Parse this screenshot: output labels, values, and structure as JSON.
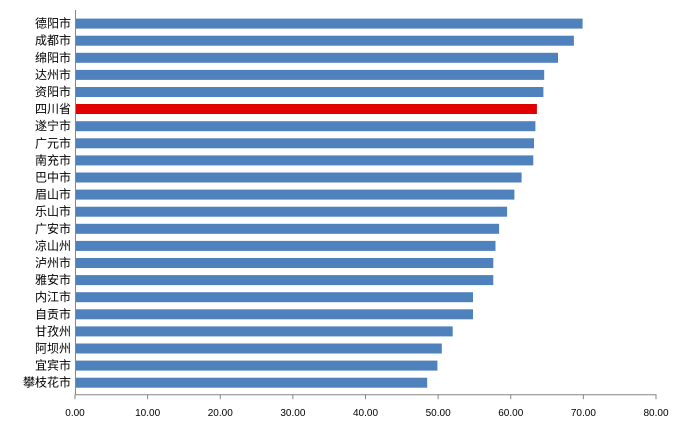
{
  "chart_data": {
    "type": "bar",
    "orientation": "horizontal",
    "categories": [
      "德阳市",
      "成都市",
      "绵阳市",
      "达州市",
      "资阳市",
      "四川省",
      "遂宁市",
      "广元市",
      "南充市",
      "巴中市",
      "眉山市",
      "乐山市",
      "广安市",
      "凉山州",
      "泸州市",
      "雅安市",
      "内江市",
      "自贡市",
      "甘孜州",
      "阿坝州",
      "宜宾市",
      "攀枝花市"
    ],
    "values": [
      69.9,
      68.7,
      66.5,
      64.6,
      64.5,
      63.6,
      63.4,
      63.2,
      63.1,
      61.5,
      60.5,
      59.5,
      58.4,
      57.9,
      57.6,
      57.6,
      54.8,
      54.8,
      52.0,
      50.5,
      49.9,
      48.5
    ],
    "highlight_category": "四川省",
    "colors": {
      "bar": "#4f81bd",
      "highlight": "#e00000",
      "axis": "#868686"
    },
    "xlim": [
      0,
      80
    ],
    "xticks": [
      "0.00",
      "10.00",
      "20.00",
      "30.00",
      "40.00",
      "50.00",
      "60.00",
      "70.00",
      "80.00"
    ],
    "grid": false,
    "legend": false
  }
}
